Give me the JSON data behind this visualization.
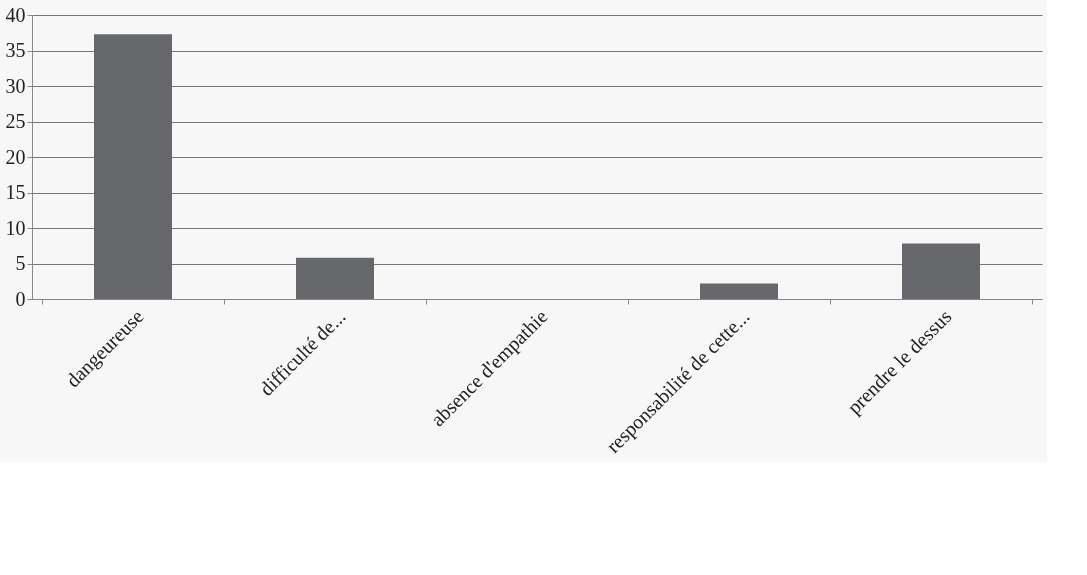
{
  "chart_data": {
    "type": "bar",
    "categories": [
      "dangeureuse",
      "difficulté de...",
      "absence d'empathie",
      "responsabilité de cette...",
      "prendre le dessus"
    ],
    "values": [
      37.3,
      5.8,
      0,
      2.2,
      7.8
    ],
    "color": "#67686b",
    "ylim": [
      0,
      40
    ],
    "yticks": [
      0,
      5,
      10,
      15,
      20,
      25,
      30,
      35,
      40
    ],
    "grid": "y"
  }
}
